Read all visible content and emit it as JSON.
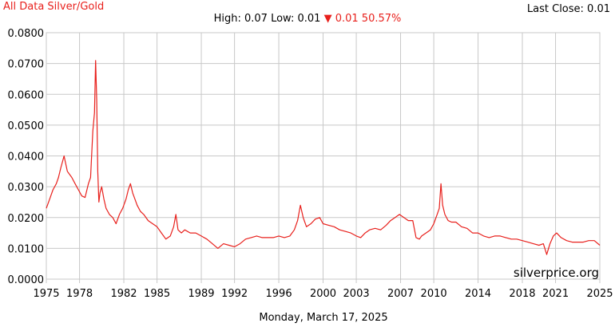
{
  "header": {
    "title": "All Data Silver/Gold",
    "last_close": "Last Close: 0.01",
    "high_low": "High: 0.07 Low: 0.01",
    "change_arrow": "▼",
    "change": "0.01 50.57%"
  },
  "footer": {
    "date": "Monday, March 17, 2025"
  },
  "watermark": "silverprice.org",
  "colors": {
    "series": "#e8201c",
    "grid": "#c8c8c8",
    "text": "#000000"
  },
  "chart_data": {
    "type": "line",
    "title": "All Data Silver/Gold",
    "xlabel": "",
    "ylabel": "",
    "xlim": [
      1975,
      2025
    ],
    "ylim": [
      0,
      0.08
    ],
    "grid": true,
    "x_ticks": [
      "1975",
      "1978",
      "1982",
      "1985",
      "1989",
      "1992",
      "1996",
      "2000",
      "2003",
      "2007",
      "2010",
      "2014",
      "2018",
      "2021",
      "2025"
    ],
    "y_ticks": [
      "0.0000",
      "0.0100",
      "0.0200",
      "0.0300",
      "0.0400",
      "0.0500",
      "0.0600",
      "0.0700",
      "0.0800"
    ],
    "series": [
      {
        "name": "",
        "x": [
          1975.0,
          1975.3,
          1975.6,
          1975.9,
          1976.1,
          1976.3,
          1976.6,
          1976.9,
          1977.3,
          1977.6,
          1977.9,
          1978.2,
          1978.5,
          1978.8,
          1979.0,
          1979.2,
          1979.35,
          1979.45,
          1979.55,
          1979.65,
          1979.75,
          1979.85,
          1980.0,
          1980.2,
          1980.4,
          1980.7,
          1981.0,
          1981.3,
          1981.6,
          1981.9,
          1982.2,
          1982.4,
          1982.6,
          1982.8,
          1983.0,
          1983.2,
          1983.5,
          1983.8,
          1984.2,
          1984.6,
          1985.0,
          1985.4,
          1985.8,
          1986.2,
          1986.5,
          1986.7,
          1986.9,
          1987.2,
          1987.5,
          1988.0,
          1988.5,
          1989.0,
          1989.5,
          1990.0,
          1990.5,
          1991.0,
          1991.5,
          1992.0,
          1992.5,
          1993.0,
          1993.5,
          1994.0,
          1994.5,
          1995.0,
          1995.5,
          1996.0,
          1996.5,
          1997.0,
          1997.4,
          1997.7,
          1997.95,
          1998.2,
          1998.5,
          1998.9,
          1999.3,
          1999.7,
          2000.0,
          2000.5,
          2001.0,
          2001.5,
          2002.0,
          2002.5,
          2003.0,
          2003.4,
          2003.8,
          2004.2,
          2004.7,
          2005.2,
          2005.7,
          2006.1,
          2006.5,
          2006.9,
          2007.3,
          2007.7,
          2008.1,
          2008.4,
          2008.7,
          2008.9,
          2009.3,
          2009.7,
          2010.0,
          2010.3,
          2010.5,
          2010.65,
          2010.8,
          2011.0,
          2011.3,
          2011.6,
          2012.0,
          2012.5,
          2013.0,
          2013.5,
          2014.0,
          2014.5,
          2015.0,
          2015.5,
          2016.0,
          2016.5,
          2017.0,
          2017.5,
          2018.0,
          2018.5,
          2019.0,
          2019.5,
          2019.9,
          2020.2,
          2020.5,
          2020.8,
          2021.1,
          2021.5,
          2022.0,
          2022.5,
          2023.0,
          2023.5,
          2024.0,
          2024.5,
          2025.0
        ],
        "values": [
          0.023,
          0.026,
          0.029,
          0.031,
          0.033,
          0.036,
          0.04,
          0.035,
          0.033,
          0.031,
          0.029,
          0.027,
          0.0265,
          0.031,
          0.033,
          0.048,
          0.054,
          0.071,
          0.058,
          0.035,
          0.025,
          0.028,
          0.03,
          0.026,
          0.023,
          0.021,
          0.02,
          0.018,
          0.021,
          0.023,
          0.026,
          0.029,
          0.031,
          0.028,
          0.026,
          0.024,
          0.022,
          0.021,
          0.019,
          0.018,
          0.017,
          0.015,
          0.013,
          0.014,
          0.017,
          0.021,
          0.016,
          0.015,
          0.016,
          0.015,
          0.015,
          0.014,
          0.013,
          0.0115,
          0.01,
          0.0115,
          0.011,
          0.0105,
          0.0115,
          0.013,
          0.0135,
          0.014,
          0.0135,
          0.0135,
          0.0135,
          0.014,
          0.0135,
          0.014,
          0.016,
          0.019,
          0.024,
          0.02,
          0.017,
          0.018,
          0.0195,
          0.02,
          0.018,
          0.0175,
          0.017,
          0.016,
          0.0155,
          0.015,
          0.014,
          0.0135,
          0.015,
          0.016,
          0.0165,
          0.016,
          0.0175,
          0.019,
          0.02,
          0.021,
          0.02,
          0.019,
          0.019,
          0.0135,
          0.013,
          0.014,
          0.015,
          0.016,
          0.018,
          0.021,
          0.023,
          0.031,
          0.024,
          0.021,
          0.019,
          0.0185,
          0.0185,
          0.017,
          0.0165,
          0.015,
          0.015,
          0.014,
          0.0135,
          0.014,
          0.014,
          0.0135,
          0.013,
          0.013,
          0.0125,
          0.012,
          0.0115,
          0.011,
          0.0115,
          0.008,
          0.0115,
          0.014,
          0.015,
          0.0135,
          0.0125,
          0.012,
          0.012,
          0.012,
          0.0125,
          0.0125,
          0.011
        ]
      }
    ]
  }
}
